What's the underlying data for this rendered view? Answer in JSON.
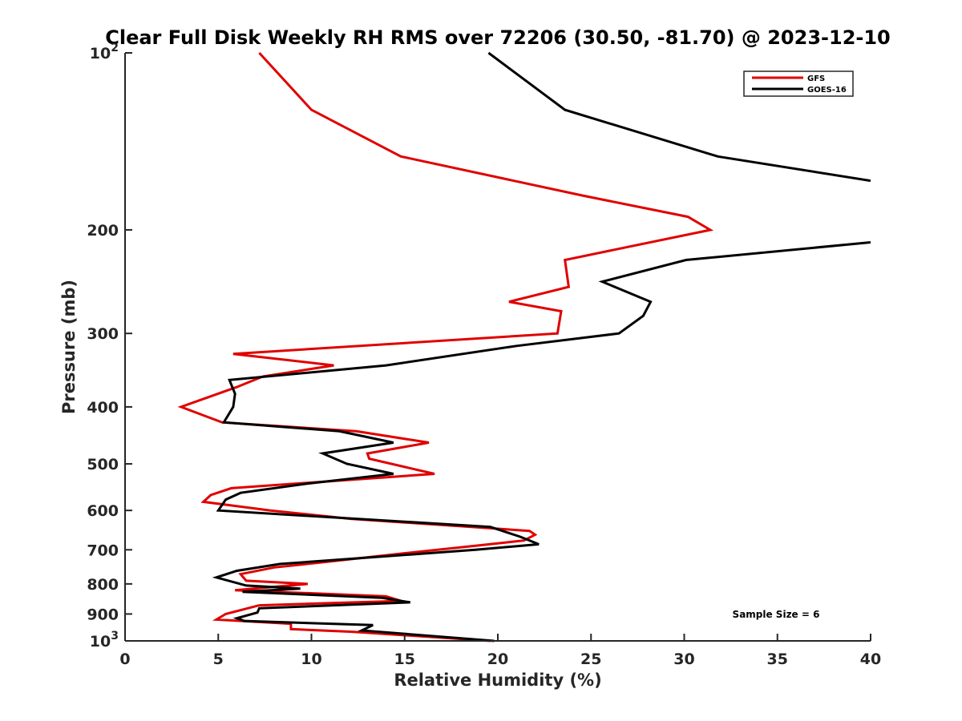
{
  "chart_data": {
    "type": "line",
    "title": "Clear Full Disk Weekly RH RMS over 72206 (30.50, -81.70) @ 2023-12-10",
    "xlabel": "Relative Humidity (%)",
    "ylabel": "Pressure (mb)",
    "xlim": [
      0,
      40
    ],
    "ylim": [
      100,
      1000
    ],
    "y_scale": "log",
    "y_reversed": true,
    "grid": false,
    "legend_position": "top-right",
    "x_ticks": [
      "0",
      "5",
      "10",
      "15",
      "20",
      "25",
      "30",
      "35",
      "40"
    ],
    "y_ticks": [
      {
        "value": 100,
        "base": "10",
        "exp": "2"
      },
      {
        "value": 200,
        "label": "200"
      },
      {
        "value": 300,
        "label": "300"
      },
      {
        "value": 400,
        "label": "400"
      },
      {
        "value": 500,
        "label": "500"
      },
      {
        "value": 600,
        "label": "600"
      },
      {
        "value": 700,
        "label": "700"
      },
      {
        "value": 800,
        "label": "800"
      },
      {
        "value": 900,
        "label": "900"
      },
      {
        "value": 1000,
        "base": "10",
        "exp": "3"
      }
    ],
    "annotation": "Sample Size = 6",
    "series": [
      {
        "name": "GFS",
        "color": "#e00000",
        "points": [
          [
            7.2,
            100
          ],
          [
            10.0,
            125
          ],
          [
            14.8,
            150
          ],
          [
            24.6,
            175
          ],
          [
            30.2,
            190
          ],
          [
            31.4,
            200
          ],
          [
            23.6,
            225
          ],
          [
            23.8,
            250
          ],
          [
            20.6,
            265
          ],
          [
            23.4,
            275
          ],
          [
            23.2,
            300
          ],
          [
            5.8,
            325
          ],
          [
            11.2,
            340
          ],
          [
            7.4,
            355
          ],
          [
            6.0,
            370
          ],
          [
            3.0,
            400
          ],
          [
            5.2,
            425
          ],
          [
            12.4,
            440
          ],
          [
            16.3,
            460
          ],
          [
            13.0,
            480
          ],
          [
            13.1,
            490
          ],
          [
            16.6,
            520
          ],
          [
            5.7,
            550
          ],
          [
            4.6,
            565
          ],
          [
            4.2,
            580
          ],
          [
            7.8,
            600
          ],
          [
            12.1,
            620
          ],
          [
            21.7,
            650
          ],
          [
            22.0,
            660
          ],
          [
            21.4,
            675
          ],
          [
            18.6,
            690
          ],
          [
            14.0,
            715
          ],
          [
            10.6,
            735
          ],
          [
            8.0,
            750
          ],
          [
            6.2,
            770
          ],
          [
            6.5,
            790
          ],
          [
            9.8,
            800
          ],
          [
            5.9,
            820
          ],
          [
            14.0,
            840
          ],
          [
            14.8,
            855
          ],
          [
            7.2,
            870
          ],
          [
            5.4,
            900
          ],
          [
            4.9,
            920
          ],
          [
            8.9,
            935
          ],
          [
            8.9,
            955
          ],
          [
            12.2,
            965
          ],
          [
            19.6,
            1000
          ]
        ]
      },
      {
        "name": "GOES-16",
        "color": "#000000",
        "points": [
          [
            19.5,
            100
          ],
          [
            23.6,
            125
          ],
          [
            31.8,
            150
          ],
          [
            40.0,
            165
          ],
          [
            null,
            180
          ],
          [
            40.0,
            210
          ],
          [
            30.1,
            225
          ],
          [
            25.6,
            245
          ],
          [
            28.2,
            265
          ],
          [
            27.8,
            280
          ],
          [
            26.5,
            300
          ],
          [
            21.0,
            315
          ],
          [
            14.0,
            340
          ],
          [
            5.6,
            360
          ],
          [
            5.9,
            380
          ],
          [
            5.8,
            400
          ],
          [
            5.3,
            425
          ],
          [
            11.5,
            440
          ],
          [
            14.4,
            460
          ],
          [
            10.6,
            480
          ],
          [
            11.9,
            500
          ],
          [
            14.4,
            520
          ],
          [
            9.8,
            540
          ],
          [
            6.2,
            560
          ],
          [
            5.4,
            575
          ],
          [
            5.0,
            600
          ],
          [
            19.6,
            640
          ],
          [
            21.2,
            665
          ],
          [
            22.2,
            685
          ],
          [
            18.8,
            700
          ],
          [
            8.3,
            740
          ],
          [
            6.0,
            760
          ],
          [
            4.9,
            780
          ],
          [
            6.5,
            805
          ],
          [
            9.4,
            815
          ],
          [
            6.3,
            825
          ],
          [
            13.8,
            845
          ],
          [
            15.3,
            860
          ],
          [
            7.2,
            880
          ],
          [
            7.1,
            895
          ],
          [
            6.0,
            915
          ],
          [
            6.4,
            925
          ],
          [
            13.3,
            940
          ],
          [
            12.7,
            960
          ],
          [
            19.8,
            1000
          ]
        ]
      }
    ]
  }
}
